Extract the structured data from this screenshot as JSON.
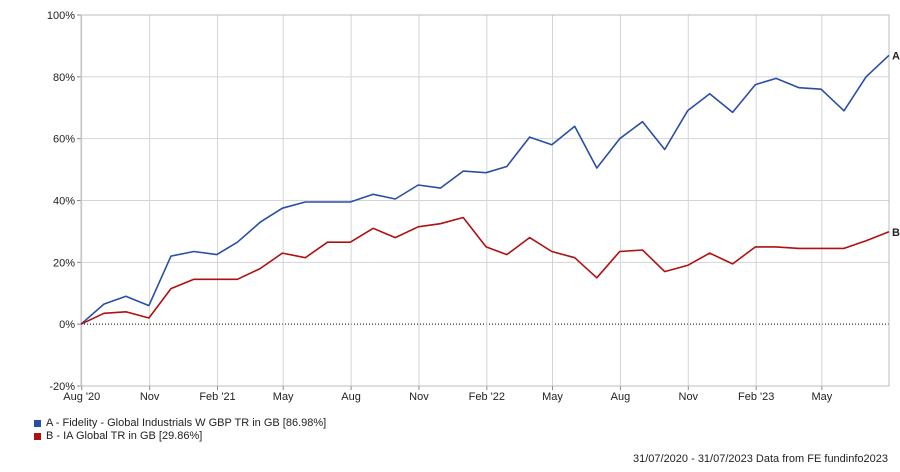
{
  "chart_data": {
    "type": "line",
    "title": "",
    "xlabel": "",
    "ylabel": "",
    "y_tick_labels": [
      "-20%",
      "0%",
      "20%",
      "40%",
      "60%",
      "80%",
      "100%"
    ],
    "y_ticks": [
      -20,
      0,
      20,
      40,
      60,
      80,
      100
    ],
    "ylim": [
      -20,
      100
    ],
    "x_tick_labels": [
      "Aug '20",
      "Nov",
      "Feb '21",
      "May",
      "Aug",
      "Nov",
      "Feb '22",
      "May",
      "Aug",
      "Nov",
      "Feb '23",
      "May"
    ],
    "x_tick_dates": [
      "2020-08-01",
      "2020-11-01",
      "2021-02-01",
      "2021-05-01",
      "2021-08-01",
      "2021-11-01",
      "2022-02-01",
      "2022-05-01",
      "2022-08-01",
      "2022-11-01",
      "2023-02-01",
      "2023-05-01"
    ],
    "xlim": [
      "2020-07-31",
      "2023-07-31"
    ],
    "grid": true,
    "zero_line": "dotted",
    "series": [
      {
        "name": "A - Fidelity - Global Industrials W GBP TR in GB [86.98%]",
        "end_label": "A",
        "color": "#2a4ea6",
        "x": [
          "2020-07-31",
          "2020-08-31",
          "2020-09-30",
          "2020-10-31",
          "2020-11-30",
          "2020-12-31",
          "2021-01-31",
          "2021-02-28",
          "2021-03-31",
          "2021-04-30",
          "2021-05-31",
          "2021-06-30",
          "2021-07-31",
          "2021-08-31",
          "2021-09-30",
          "2021-10-31",
          "2021-11-30",
          "2021-12-31",
          "2022-01-31",
          "2022-02-28",
          "2022-03-31",
          "2022-04-30",
          "2022-05-31",
          "2022-06-30",
          "2022-07-31",
          "2022-08-31",
          "2022-09-30",
          "2022-10-31",
          "2022-11-30",
          "2022-12-31",
          "2023-01-31",
          "2023-02-28",
          "2023-03-31",
          "2023-04-30",
          "2023-05-31",
          "2023-06-30",
          "2023-07-31"
        ],
        "values": [
          0,
          6.5,
          9,
          6,
          22,
          23.5,
          22.5,
          26.5,
          33,
          37.5,
          39.5,
          39.5,
          39.5,
          42,
          40.5,
          45,
          44,
          49.5,
          49,
          51,
          60.5,
          58,
          64,
          50.5,
          60,
          65.5,
          56.5,
          69,
          74.5,
          68.5,
          77.5,
          79.5,
          76.5,
          76,
          69,
          80,
          86.98
        ]
      },
      {
        "name": "B - IA Global TR in GB [29.86%]",
        "end_label": "B",
        "color": "#b01010",
        "x": [
          "2020-07-31",
          "2020-08-31",
          "2020-09-30",
          "2020-10-31",
          "2020-11-30",
          "2020-12-31",
          "2021-01-31",
          "2021-02-28",
          "2021-03-31",
          "2021-04-30",
          "2021-05-31",
          "2021-06-30",
          "2021-07-31",
          "2021-08-31",
          "2021-09-30",
          "2021-10-31",
          "2021-11-30",
          "2021-12-31",
          "2022-01-31",
          "2022-02-28",
          "2022-03-31",
          "2022-04-30",
          "2022-05-31",
          "2022-06-30",
          "2022-07-31",
          "2022-08-31",
          "2022-09-30",
          "2022-10-31",
          "2022-11-30",
          "2022-12-31",
          "2023-01-31",
          "2023-02-28",
          "2023-03-31",
          "2023-04-30",
          "2023-05-31",
          "2023-06-30",
          "2023-07-31"
        ],
        "values": [
          0,
          3.5,
          4,
          2,
          11.5,
          14.5,
          14.5,
          14.5,
          18,
          23,
          21.5,
          26.5,
          26.5,
          31,
          28,
          31.5,
          32.5,
          34.5,
          25,
          22.5,
          28,
          23.5,
          21.5,
          15,
          23.5,
          24,
          17,
          19,
          23,
          19.5,
          25,
          25,
          24.5,
          24.5,
          24.5,
          27,
          29.86
        ]
      }
    ],
    "footer": "31/07/2020 - 31/07/2023 Data from FE fundinfo2023"
  }
}
